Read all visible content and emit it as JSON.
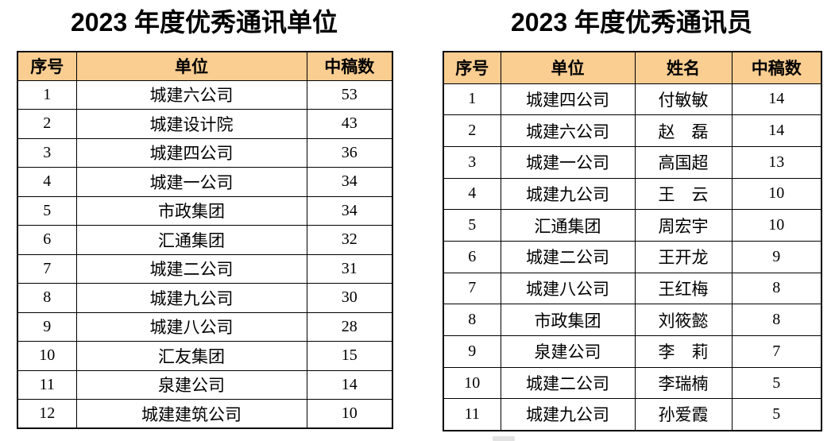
{
  "page": {
    "background": "#FFFFFF"
  },
  "colors": {
    "header_bg": "#FACD91",
    "border": "#000000",
    "text": "#000000"
  },
  "tables": [
    {
      "title": "2023 年度优秀通讯单位",
      "headers": [
        "序号",
        "单位",
        "中稿数"
      ],
      "rows": [
        [
          "1",
          "城建六公司",
          "53"
        ],
        [
          "2",
          "城建设计院",
          "43"
        ],
        [
          "3",
          "城建四公司",
          "36"
        ],
        [
          "4",
          "城建一公司",
          "34"
        ],
        [
          "5",
          "市政集团",
          "34"
        ],
        [
          "6",
          "汇通集团",
          "32"
        ],
        [
          "7",
          "城建二公司",
          "31"
        ],
        [
          "8",
          "城建九公司",
          "30"
        ],
        [
          "9",
          "城建八公司",
          "28"
        ],
        [
          "10",
          "汇友集团",
          "15"
        ],
        [
          "11",
          "泉建公司",
          "14"
        ],
        [
          "12",
          "城建建筑公司",
          "10"
        ]
      ]
    },
    {
      "title": "2023 年度优秀通讯员",
      "headers": [
        "序号",
        "单位",
        "姓名",
        "中稿数"
      ],
      "rows": [
        [
          "1",
          "城建四公司",
          "付敏敏",
          "14"
        ],
        [
          "2",
          "城建六公司",
          "赵　磊",
          "14"
        ],
        [
          "3",
          "城建一公司",
          "高国超",
          "13"
        ],
        [
          "4",
          "城建九公司",
          "王　云",
          "10"
        ],
        [
          "5",
          "汇通集团",
          "周宏宇",
          "10"
        ],
        [
          "6",
          "城建二公司",
          "王开龙",
          "9"
        ],
        [
          "7",
          "城建八公司",
          "王红梅",
          "8"
        ],
        [
          "8",
          "市政集团",
          "刘筱懿",
          "8"
        ],
        [
          "9",
          "泉建公司",
          "李　莉",
          "7"
        ],
        [
          "10",
          "城建二公司",
          "李瑞楠",
          "5"
        ],
        [
          "11",
          "城建九公司",
          "孙爱霞",
          "5"
        ]
      ]
    }
  ]
}
